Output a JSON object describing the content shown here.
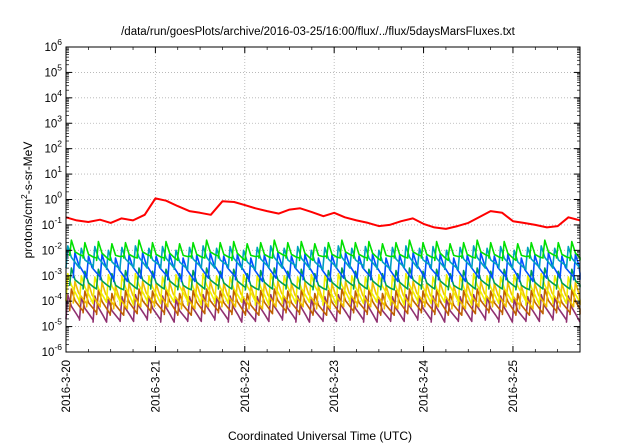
{
  "chart_data": {
    "type": "line",
    "title": "/data/run/goesPlots/archive/2016-03-25/16:00/flux/../flux/5daysMarsFluxes.txt",
    "xlabel": "Coordinated Universal Time (UTC)",
    "ylabel": {
      "base": "protons/cm",
      "sup": "2",
      "rest": "-s-sr-MeV"
    },
    "y_scale": "log",
    "ylim": [
      1e-06,
      1000000.0
    ],
    "xlim": [
      "2016-03-20 00:00",
      "2016-03-25 18:00"
    ],
    "x_ticks": [
      "2016-3-20",
      "2016-3-21",
      "2016-3-22",
      "2016-3-23",
      "2016-3-24",
      "2016-3-25"
    ],
    "y_ticks": [
      {
        "base": "10",
        "exp": "-6",
        "value": 1e-06
      },
      {
        "base": "10",
        "exp": "-5",
        "value": 1e-05
      },
      {
        "base": "10",
        "exp": "-4",
        "value": 0.0001
      },
      {
        "base": "10",
        "exp": "-3",
        "value": 0.001
      },
      {
        "base": "10",
        "exp": "-2",
        "value": 0.01
      },
      {
        "base": "10",
        "exp": "-1",
        "value": 0.1
      },
      {
        "base": "10",
        "exp": "0",
        "value": 1
      },
      {
        "base": "10",
        "exp": "1",
        "value": 10
      },
      {
        "base": "10",
        "exp": "2",
        "value": 100
      },
      {
        "base": "10",
        "exp": "3",
        "value": 1000
      },
      {
        "base": "10",
        "exp": "4",
        "value": 10000
      },
      {
        "base": "10",
        "exp": "5",
        "value": 100000
      },
      {
        "base": "10",
        "exp": "6",
        "value": 1000000
      }
    ],
    "grid": true,
    "legend": "none",
    "series": [
      {
        "color": "#ff0000",
        "x_days": [
          0.0,
          0.12,
          0.25,
          0.38,
          0.5,
          0.62,
          0.75,
          0.88,
          1.0,
          1.12,
          1.25,
          1.38,
          1.5,
          1.62,
          1.75,
          1.88,
          2.0,
          2.12,
          2.25,
          2.38,
          2.5,
          2.62,
          2.75,
          2.88,
          3.0,
          3.12,
          3.25,
          3.38,
          3.5,
          3.62,
          3.75,
          3.88,
          4.0,
          4.12,
          4.25,
          4.38,
          4.5,
          4.62,
          4.75,
          4.88,
          5.0,
          5.12,
          5.25,
          5.38,
          5.5,
          5.62,
          5.75
        ],
        "values": [
          0.2,
          0.15,
          0.13,
          0.16,
          0.12,
          0.18,
          0.15,
          0.25,
          1.1,
          0.9,
          0.55,
          0.35,
          0.3,
          0.25,
          0.85,
          0.8,
          0.6,
          0.45,
          0.35,
          0.28,
          0.4,
          0.45,
          0.32,
          0.22,
          0.3,
          0.2,
          0.15,
          0.12,
          0.09,
          0.1,
          0.14,
          0.18,
          0.11,
          0.08,
          0.07,
          0.09,
          0.12,
          0.2,
          0.35,
          0.3,
          0.14,
          0.12,
          0.1,
          0.08,
          0.09,
          0.2,
          0.15
        ]
      },
      {
        "color": "#00e000",
        "peaks": 38,
        "peak_values": [
          0.025,
          0.02,
          0.022,
          0.018,
          0.02
        ],
        "low_values": [
          0.006,
          0.005,
          0.004,
          0.006,
          0.005
        ]
      },
      {
        "color": "#00a0c0",
        "peaks": 38,
        "peak_values": [
          0.015,
          0.012,
          0.014,
          0.01,
          0.013
        ],
        "low_values": [
          0.002,
          0.0025,
          0.002,
          0.0018,
          0.0022
        ]
      },
      {
        "color": "#0050ff",
        "peaks": 38,
        "peak_values": [
          0.008,
          0.006,
          0.007,
          0.005,
          0.0065
        ],
        "low_values": [
          0.0008,
          0.0009,
          0.0007,
          0.0006,
          0.0008
        ]
      },
      {
        "color": "#00a050",
        "peaks": 38,
        "peak_values": [
          0.002,
          0.0015,
          0.0018,
          0.0012,
          0.0016
        ],
        "low_values": [
          0.0004,
          0.0003,
          0.00035,
          0.00028,
          0.0003
        ]
      },
      {
        "color": "#f0f000",
        "peaks": 38,
        "peak_values": [
          0.0012,
          0.001,
          0.0009,
          0.0011,
          0.001
        ],
        "low_values": [
          0.0001,
          8e-05,
          9e-05,
          0.0001,
          7e-05
        ]
      },
      {
        "color": "#f0c000",
        "peaks": 38,
        "peak_values": [
          0.0006,
          0.0005,
          0.00055,
          0.0004,
          0.0005
        ],
        "low_values": [
          8e-05,
          6e-05,
          7e-05,
          5e-05,
          6e-05
        ]
      },
      {
        "color": "#c06000",
        "peaks": 38,
        "peak_values": [
          0.0003,
          0.00025,
          0.00028,
          0.0002,
          0.00026
        ],
        "low_values": [
          4e-05,
          3.5e-05,
          3e-05,
          2.8e-05,
          3.2e-05
        ]
      },
      {
        "color": "#903070",
        "peaks": 38,
        "peak_values": [
          0.00018,
          0.00015,
          0.00016,
          0.00012,
          0.00015
        ],
        "low_values": [
          2e-05,
          1.8e-05,
          1.5e-05,
          1.7e-05,
          1.6e-05
        ]
      }
    ]
  }
}
